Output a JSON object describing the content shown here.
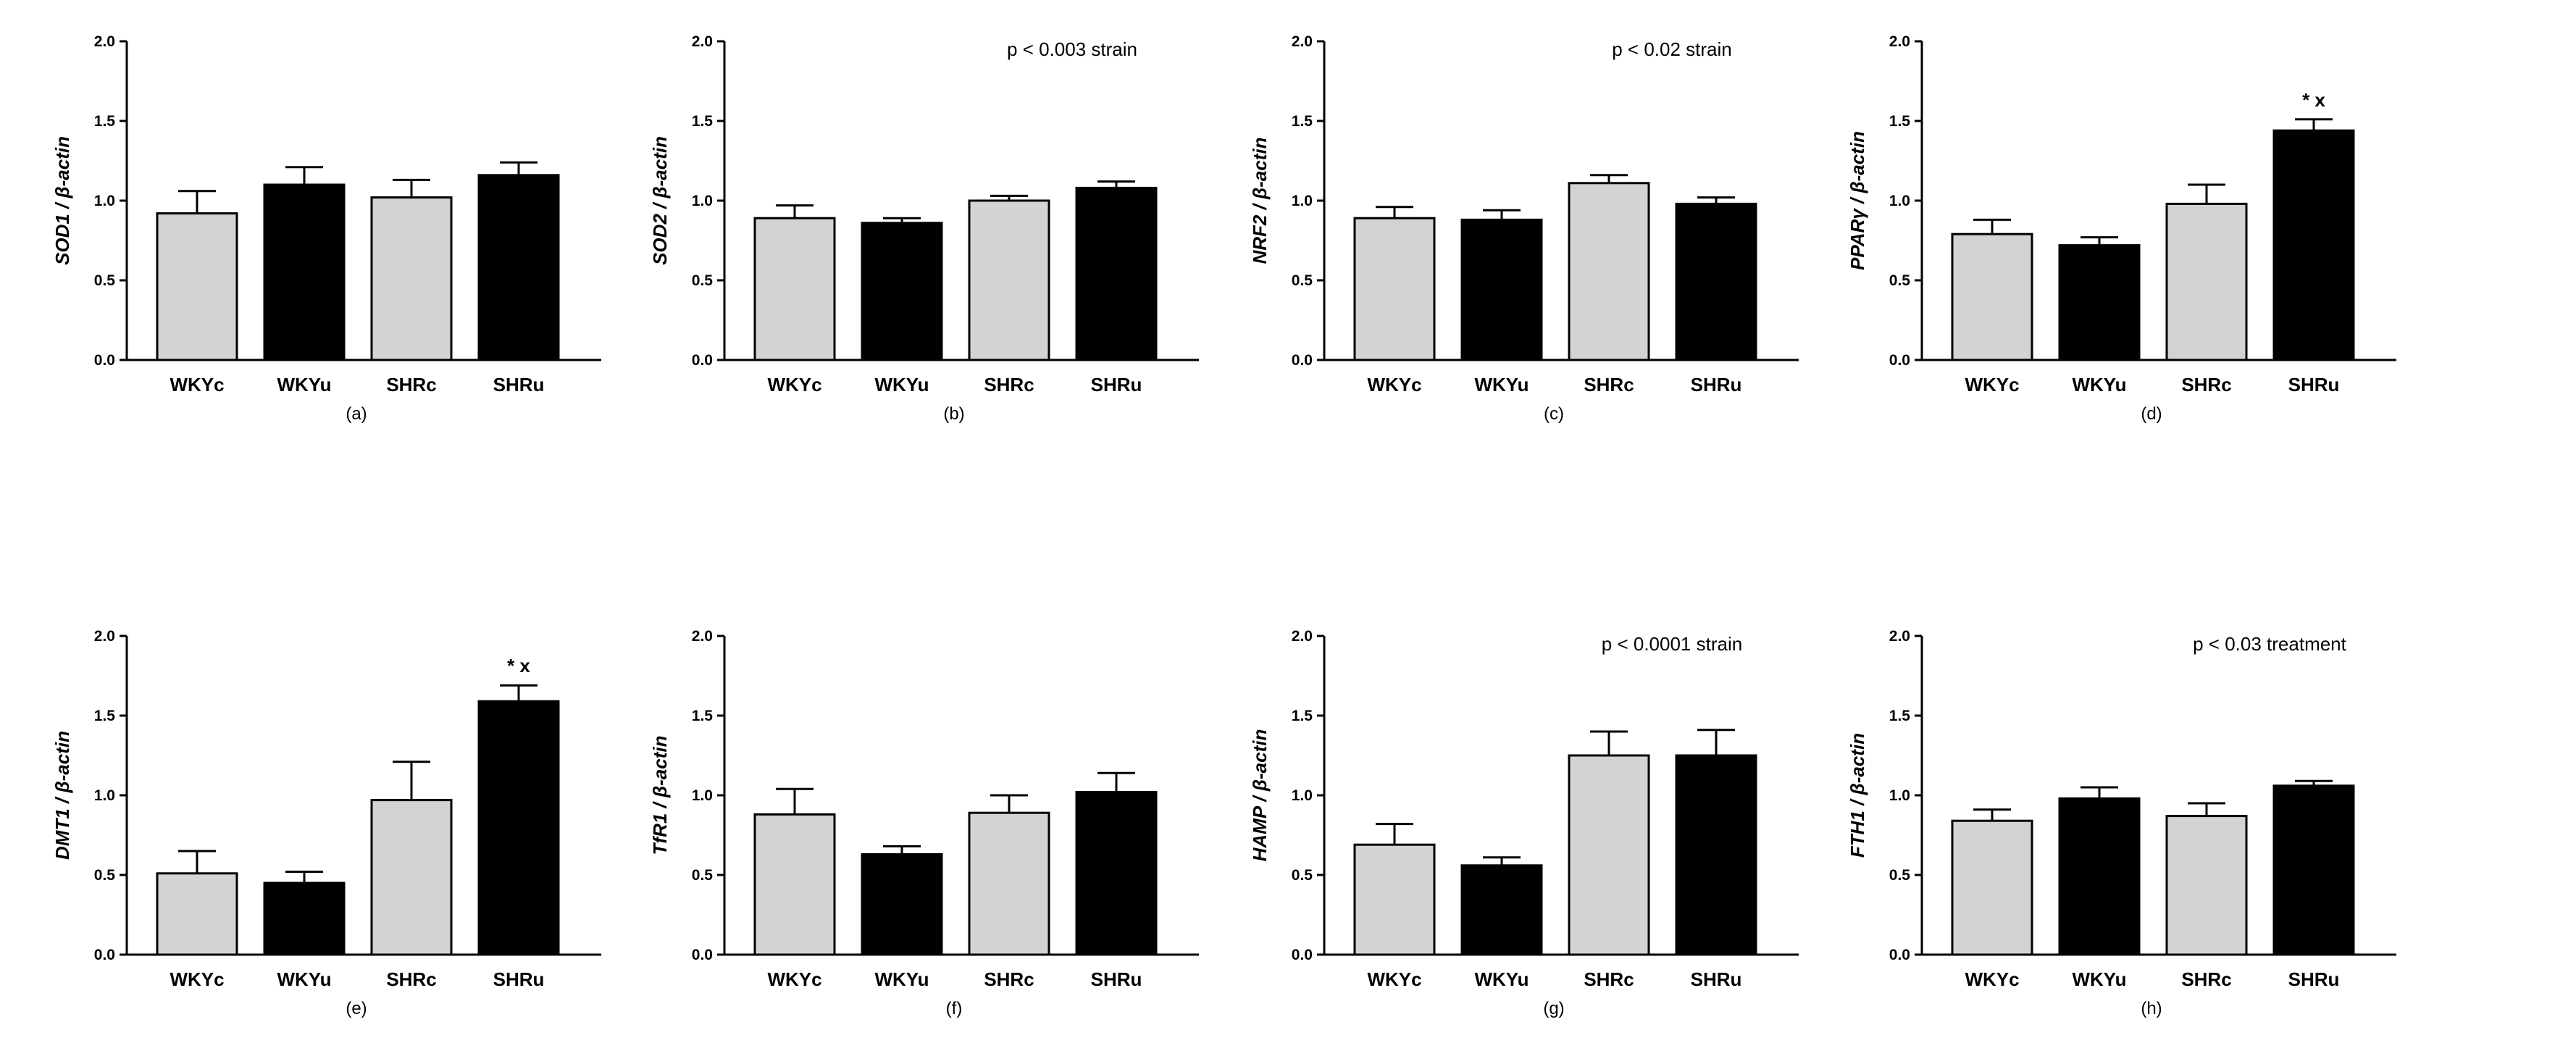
{
  "chart_data": [
    {
      "type": "bar",
      "panel": "(a)",
      "ylabel": "SOD1 / β-actin",
      "categories": [
        "WKYc",
        "WKYu",
        "SHRc",
        "SHRu"
      ],
      "values": [
        0.92,
        1.1,
        1.02,
        1.16
      ],
      "errors": [
        0.14,
        0.11,
        0.11,
        0.08
      ],
      "bar_colors": [
        "#d3d3d3",
        "#000000",
        "#d3d3d3",
        "#000000"
      ],
      "ylim": [
        0,
        2.0
      ],
      "yticks": [
        "0.0",
        "0.5",
        "1.0",
        "1.5",
        "2.0"
      ],
      "annotation": "",
      "significance": [
        "",
        "",
        "",
        ""
      ]
    },
    {
      "type": "bar",
      "panel": "(b)",
      "ylabel": "SOD2 / β-actin",
      "categories": [
        "WKYc",
        "WKYu",
        "SHRc",
        "SHRu"
      ],
      "values": [
        0.89,
        0.86,
        1.0,
        1.08
      ],
      "errors": [
        0.08,
        0.03,
        0.03,
        0.04
      ],
      "bar_colors": [
        "#d3d3d3",
        "#000000",
        "#d3d3d3",
        "#000000"
      ],
      "ylim": [
        0,
        2.0
      ],
      "yticks": [
        "0.0",
        "0.5",
        "1.0",
        "1.5",
        "2.0"
      ],
      "annotation": "p < 0.003  strain",
      "significance": [
        "",
        "",
        "",
        ""
      ]
    },
    {
      "type": "bar",
      "panel": "(c)",
      "ylabel": "NRF2 / β-actin",
      "categories": [
        "WKYc",
        "WKYu",
        "SHRc",
        "SHRu"
      ],
      "values": [
        0.89,
        0.88,
        1.11,
        0.98
      ],
      "errors": [
        0.07,
        0.06,
        0.05,
        0.04
      ],
      "bar_colors": [
        "#d3d3d3",
        "#000000",
        "#d3d3d3",
        "#000000"
      ],
      "ylim": [
        0,
        2.0
      ],
      "yticks": [
        "0.0",
        "0.5",
        "1.0",
        "1.5",
        "2.0"
      ],
      "annotation": "p < 0.02  strain",
      "significance": [
        "",
        "",
        "",
        ""
      ]
    },
    {
      "type": "bar",
      "panel": "(d)",
      "ylabel": "PPARγ / β-actin",
      "categories": [
        "WKYc",
        "WKYu",
        "SHRc",
        "SHRu"
      ],
      "values": [
        0.79,
        0.72,
        0.98,
        1.44
      ],
      "errors": [
        0.09,
        0.05,
        0.12,
        0.07
      ],
      "bar_colors": [
        "#d3d3d3",
        "#000000",
        "#d3d3d3",
        "#000000"
      ],
      "ylim": [
        0,
        2.0
      ],
      "yticks": [
        "0.0",
        "0.5",
        "1.0",
        "1.5",
        "2.0"
      ],
      "annotation": "",
      "significance": [
        "",
        "",
        "",
        "* x"
      ]
    },
    {
      "type": "bar",
      "panel": "(e)",
      "ylabel": "DMT1 / β-actin",
      "categories": [
        "WKYc",
        "WKYu",
        "SHRc",
        "SHRu"
      ],
      "values": [
        0.51,
        0.45,
        0.97,
        1.59
      ],
      "errors": [
        0.14,
        0.07,
        0.24,
        0.1
      ],
      "bar_colors": [
        "#d3d3d3",
        "#000000",
        "#d3d3d3",
        "#000000"
      ],
      "ylim": [
        0,
        2.0
      ],
      "yticks": [
        "0.0",
        "0.5",
        "1.0",
        "1.5",
        "2.0"
      ],
      "annotation": "",
      "significance": [
        "",
        "",
        "",
        "* x"
      ]
    },
    {
      "type": "bar",
      "panel": "(f)",
      "ylabel": "TfR1 / β-actin",
      "categories": [
        "WKYc",
        "WKYu",
        "SHRc",
        "SHRu"
      ],
      "values": [
        0.88,
        0.63,
        0.89,
        1.02
      ],
      "errors": [
        0.16,
        0.05,
        0.11,
        0.12
      ],
      "bar_colors": [
        "#d3d3d3",
        "#000000",
        "#d3d3d3",
        "#000000"
      ],
      "ylim": [
        0,
        2.0
      ],
      "yticks": [
        "0.0",
        "0.5",
        "1.0",
        "1.5",
        "2.0"
      ],
      "annotation": "",
      "significance": [
        "",
        "",
        "",
        ""
      ]
    },
    {
      "type": "bar",
      "panel": "(g)",
      "ylabel": "HAMP / β-actin",
      "categories": [
        "WKYc",
        "WKYu",
        "SHRc",
        "SHRu"
      ],
      "values": [
        0.69,
        0.56,
        1.25,
        1.25
      ],
      "errors": [
        0.13,
        0.05,
        0.15,
        0.16
      ],
      "bar_colors": [
        "#d3d3d3",
        "#000000",
        "#d3d3d3",
        "#000000"
      ],
      "ylim": [
        0,
        2.0
      ],
      "yticks": [
        "0.0",
        "0.5",
        "1.0",
        "1.5",
        "2.0"
      ],
      "annotation": "p < 0.0001  strain",
      "significance": [
        "",
        "",
        "",
        ""
      ]
    },
    {
      "type": "bar",
      "panel": "(h)",
      "ylabel": "FTH1 / β-actin",
      "categories": [
        "WKYc",
        "WKYu",
        "SHRc",
        "SHRu"
      ],
      "values": [
        0.84,
        0.98,
        0.87,
        1.06
      ],
      "errors": [
        0.07,
        0.07,
        0.08,
        0.03
      ],
      "bar_colors": [
        "#d3d3d3",
        "#000000",
        "#d3d3d3",
        "#000000"
      ],
      "ylim": [
        0,
        2.0
      ],
      "yticks": [
        "0.0",
        "0.5",
        "1.0",
        "1.5",
        "2.0"
      ],
      "annotation": "p < 0.03  treatment",
      "significance": [
        "",
        "",
        "",
        ""
      ]
    }
  ]
}
